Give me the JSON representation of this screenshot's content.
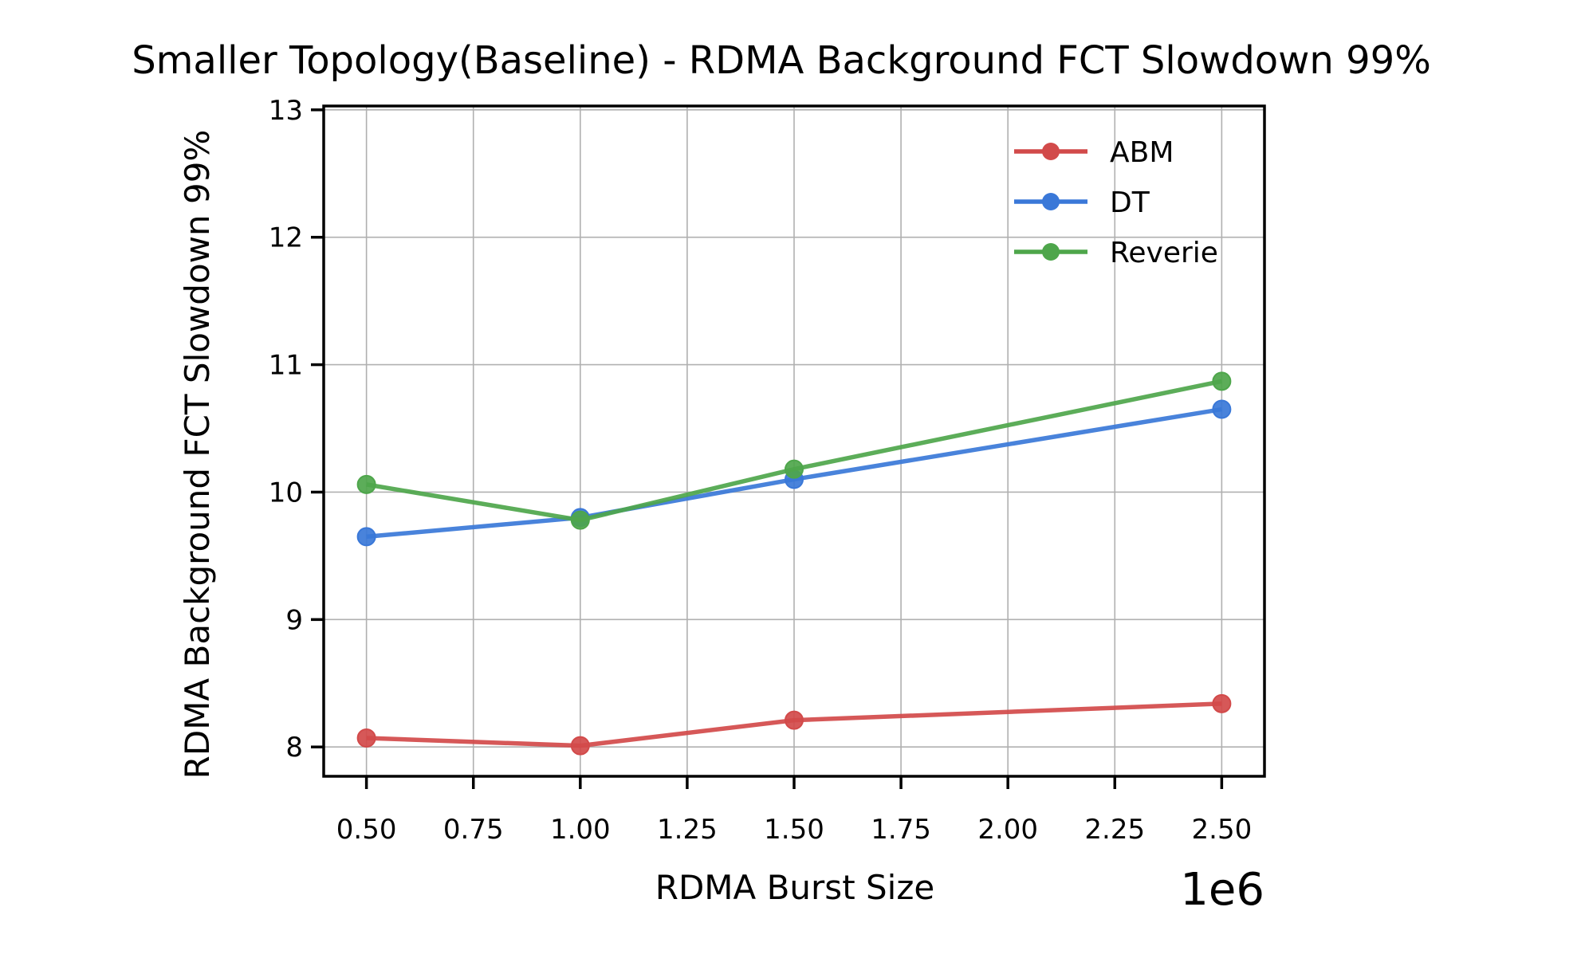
{
  "chart_data": {
    "type": "line",
    "title": "Smaller Topology(Baseline) - RDMA Background FCT Slowdown 99%",
    "xlabel": "RDMA Burst Size",
    "ylabel": "RDMA Background FCT Slowdown 99%",
    "x_offset_label": "1e6",
    "x": [
      0.5,
      1.0,
      1.5,
      2.5
    ],
    "xlim": [
      0.4,
      2.6
    ],
    "ylim": [
      7.77,
      13.03
    ],
    "x_ticks": [
      0.5,
      0.75,
      1.0,
      1.25,
      1.5,
      1.75,
      2.0,
      2.25,
      2.5
    ],
    "x_tick_labels": [
      "0.50",
      "0.75",
      "1.00",
      "1.25",
      "1.50",
      "1.75",
      "2.00",
      "2.25",
      "2.50"
    ],
    "y_ticks": [
      8,
      9,
      10,
      11,
      12,
      13
    ],
    "y_tick_labels": [
      "8",
      "9",
      "10",
      "11",
      "12",
      "13"
    ],
    "grid": true,
    "legend_position": "top-right",
    "series": [
      {
        "name": "ABM",
        "color": "#d24a4a",
        "values": [
          8.07,
          8.01,
          8.21,
          8.34
        ]
      },
      {
        "name": "DT",
        "color": "#3a78d8",
        "values": [
          9.65,
          9.8,
          10.1,
          10.65
        ]
      },
      {
        "name": "Reverie",
        "color": "#4ea64b",
        "values": [
          10.06,
          9.78,
          10.18,
          10.87
        ]
      }
    ]
  }
}
